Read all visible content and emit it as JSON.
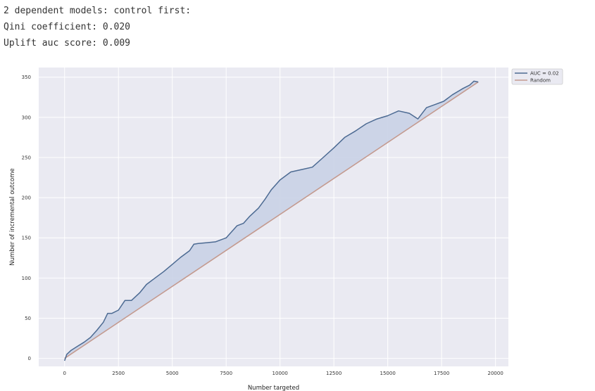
{
  "output": {
    "lines": [
      "2 dependent models: control first:",
      "Qini coefficient: 0.020",
      "Uplift auc score: 0.009"
    ]
  },
  "chart_data": {
    "type": "line",
    "title": "",
    "xlabel": "Number targeted",
    "ylabel": "Number of incremental outcome",
    "xlim": [
      -1200,
      20600
    ],
    "ylim": [
      -10,
      362
    ],
    "x_ticks": [
      0,
      2500,
      5000,
      7500,
      10000,
      12500,
      15000,
      17500,
      20000
    ],
    "y_ticks": [
      0,
      50,
      100,
      150,
      200,
      250,
      300,
      350
    ],
    "grid": true,
    "legend_position": "outside-top-right",
    "background_color": "#eaeaf2",
    "series": [
      {
        "name": "AUC = 0.02",
        "color": "#4c6a92",
        "fill": "#c9d2e6",
        "x": [
          0,
          100,
          300,
          600,
          900,
          1200,
          1500,
          1800,
          2000,
          2200,
          2500,
          2800,
          3100,
          3500,
          3800,
          4200,
          4600,
          5000,
          5400,
          5800,
          6000,
          6200,
          6600,
          7000,
          7500,
          8000,
          8300,
          8600,
          9000,
          9300,
          9600,
          10000,
          10500,
          11000,
          11500,
          12000,
          12500,
          13000,
          13500,
          14000,
          14500,
          15000,
          15500,
          16000,
          16400,
          16800,
          17200,
          17600,
          18000,
          18500,
          18800,
          19000,
          19200
        ],
        "y": [
          -3,
          5,
          10,
          15,
          20,
          26,
          35,
          45,
          56,
          56,
          60,
          72,
          72,
          82,
          92,
          100,
          108,
          117,
          126,
          134,
          142,
          143,
          144,
          145,
          150,
          165,
          168,
          177,
          187,
          198,
          210,
          222,
          232,
          235,
          238,
          250,
          262,
          275,
          283,
          292,
          298,
          302,
          308,
          305,
          298,
          312,
          316,
          320,
          328,
          336,
          340,
          345,
          344
        ]
      },
      {
        "name": "Random",
        "color": "#c49a8f",
        "x": [
          0,
          19200
        ],
        "y": [
          0,
          344
        ]
      }
    ]
  }
}
